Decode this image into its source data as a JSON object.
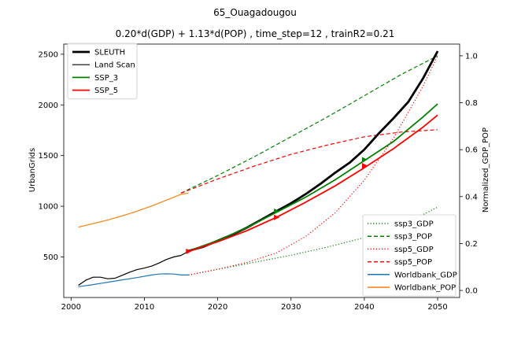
{
  "chart_data": {
    "type": "line",
    "title": "65_Ouagadougou",
    "subtitle": "0.20*d(GDP) + 1.13*d(POP) , time_step=12 , trainR2=0.21",
    "xlabel": "",
    "ylabel_left": "UrbanGrids",
    "ylabel_right": "Normalized_GDP_POP",
    "xlim": [
      1999,
      2053
    ],
    "ylim_left": [
      100,
      2600
    ],
    "ylim_right": [
      -0.03,
      1.05
    ],
    "xticks": [
      2000,
      2010,
      2020,
      2030,
      2040,
      2050
    ],
    "yticks_left": [
      500,
      1000,
      1500,
      2000,
      2500
    ],
    "yticks_right": [
      0.0,
      0.2,
      0.4,
      0.6,
      0.8,
      1.0
    ],
    "grid": false,
    "legend_left": {
      "placement": "top-left",
      "entries": [
        {
          "label": "SLEUTH",
          "color": "#000000",
          "style": "solid",
          "width": 2.8
        },
        {
          "label": "Land Scan",
          "color": "#000000",
          "style": "solid",
          "width": 1.2
        },
        {
          "label": "SSP_3",
          "color": "#008000",
          "style": "solid",
          "width": 1.8
        },
        {
          "label": "SSP_5",
          "color": "#ff0000",
          "style": "solid",
          "width": 1.8
        }
      ]
    },
    "legend_right": {
      "placement": "bottom-right",
      "entries": [
        {
          "label": "ssp3_GDP",
          "color": "#008000",
          "style": "dotted"
        },
        {
          "label": "ssp3_POP",
          "color": "#008000",
          "style": "dashed"
        },
        {
          "label": "ssp5_GDP",
          "color": "#ff0000",
          "style": "dotted"
        },
        {
          "label": "ssp5_POP",
          "color": "#ff0000",
          "style": "dashed"
        },
        {
          "label": "Worldbank_GDP",
          "color": "#1f77b4",
          "style": "solid"
        },
        {
          "label": "Worldbank_POP",
          "color": "#ff7f0e",
          "style": "solid"
        }
      ]
    },
    "series": [
      {
        "name": "SLEUTH",
        "axis": "left",
        "color": "#000000",
        "style": "solid",
        "width": 2.8,
        "x": [
          2016,
          2018,
          2020,
          2022,
          2024,
          2026,
          2028,
          2030,
          2032,
          2034,
          2036,
          2038,
          2040,
          2042,
          2044,
          2046,
          2048,
          2050
        ],
        "y": [
          560,
          600,
          660,
          720,
          790,
          870,
          950,
          1030,
          1120,
          1220,
          1330,
          1430,
          1560,
          1720,
          1870,
          2030,
          2260,
          2530
        ]
      },
      {
        "name": "Land Scan",
        "axis": "left",
        "color": "#000000",
        "style": "solid",
        "width": 1.2,
        "x": [
          2001,
          2002,
          2003,
          2004,
          2005,
          2006,
          2007,
          2008,
          2009,
          2010,
          2011,
          2012,
          2013,
          2014,
          2015,
          2016
        ],
        "y": [
          220,
          270,
          300,
          300,
          285,
          290,
          320,
          350,
          375,
          390,
          410,
          440,
          475,
          500,
          515,
          555
        ]
      },
      {
        "name": "SSP_3",
        "axis": "left",
        "color": "#008000",
        "style": "solid",
        "width": 1.8,
        "x": [
          2016,
          2020,
          2024,
          2028,
          2032,
          2036,
          2040,
          2044,
          2048,
          2050
        ],
        "y": [
          560,
          660,
          790,
          940,
          1090,
          1260,
          1450,
          1640,
          1880,
          2010
        ]
      },
      {
        "name": "SSP_5",
        "axis": "left",
        "color": "#ff0000",
        "style": "solid",
        "width": 1.8,
        "x": [
          2016,
          2020,
          2024,
          2028,
          2032,
          2036,
          2040,
          2044,
          2048,
          2050
        ],
        "y": [
          555,
          650,
          760,
          890,
          1040,
          1200,
          1380,
          1570,
          1780,
          1900
        ]
      },
      {
        "name": "ssp3_GDP",
        "axis": "right",
        "color": "#008000",
        "style": "dotted",
        "width": 1.2,
        "x": [
          2016,
          2020,
          2025,
          2030,
          2035,
          2040,
          2045,
          2050
        ],
        "y": [
          0.066,
          0.09,
          0.12,
          0.15,
          0.185,
          0.225,
          0.275,
          0.355
        ]
      },
      {
        "name": "ssp3_POP",
        "axis": "right",
        "color": "#008000",
        "style": "dashed",
        "width": 1.2,
        "x": [
          2015,
          2020,
          2025,
          2030,
          2035,
          2040,
          2045,
          2050
        ],
        "y": [
          0.415,
          0.49,
          0.57,
          0.655,
          0.74,
          0.83,
          0.92,
          1.0
        ]
      },
      {
        "name": "ssp5_GDP",
        "axis": "right",
        "color": "#ff0000",
        "style": "dotted",
        "width": 1.2,
        "x": [
          2016,
          2020,
          2024,
          2028,
          2032,
          2036,
          2040,
          2044,
          2048,
          2050
        ],
        "y": [
          0.066,
          0.09,
          0.12,
          0.16,
          0.23,
          0.33,
          0.47,
          0.65,
          0.87,
          1.0
        ]
      },
      {
        "name": "ssp5_POP",
        "axis": "right",
        "color": "#ff0000",
        "style": "dashed",
        "width": 1.2,
        "x": [
          2015,
          2020,
          2025,
          2030,
          2035,
          2040,
          2045,
          2050
        ],
        "y": [
          0.415,
          0.475,
          0.53,
          0.58,
          0.62,
          0.655,
          0.675,
          0.685
        ]
      },
      {
        "name": "Worldbank_GDP",
        "axis": "right",
        "color": "#1f77b4",
        "style": "solid",
        "width": 1.2,
        "x": [
          2001,
          2003,
          2005,
          2007,
          2009,
          2011,
          2012,
          2013,
          2014,
          2015,
          2016
        ],
        "y": [
          0.016,
          0.025,
          0.035,
          0.045,
          0.055,
          0.066,
          0.07,
          0.071,
          0.07,
          0.066,
          0.066
        ]
      },
      {
        "name": "Worldbank_POP",
        "axis": "right",
        "color": "#ff7f0e",
        "style": "solid",
        "width": 1.2,
        "x": [
          2001,
          2003,
          2005,
          2007,
          2009,
          2011,
          2013,
          2015,
          2016
        ],
        "y": [
          0.27,
          0.285,
          0.3,
          0.318,
          0.338,
          0.36,
          0.385,
          0.41,
          0.415
        ]
      }
    ],
    "markers": [
      {
        "series": "SSP_3",
        "x": 2028,
        "y": 950,
        "color": "#008000"
      },
      {
        "series": "SSP_3",
        "x": 2040,
        "y": 1460,
        "color": "#008000"
      },
      {
        "series": "SSP_5",
        "x": 2016,
        "y": 555,
        "color": "#ff0000"
      },
      {
        "series": "SSP_5",
        "x": 2028,
        "y": 890,
        "color": "#ff0000"
      },
      {
        "series": "SSP_5",
        "x": 2040,
        "y": 1400,
        "color": "#ff0000"
      }
    ]
  }
}
